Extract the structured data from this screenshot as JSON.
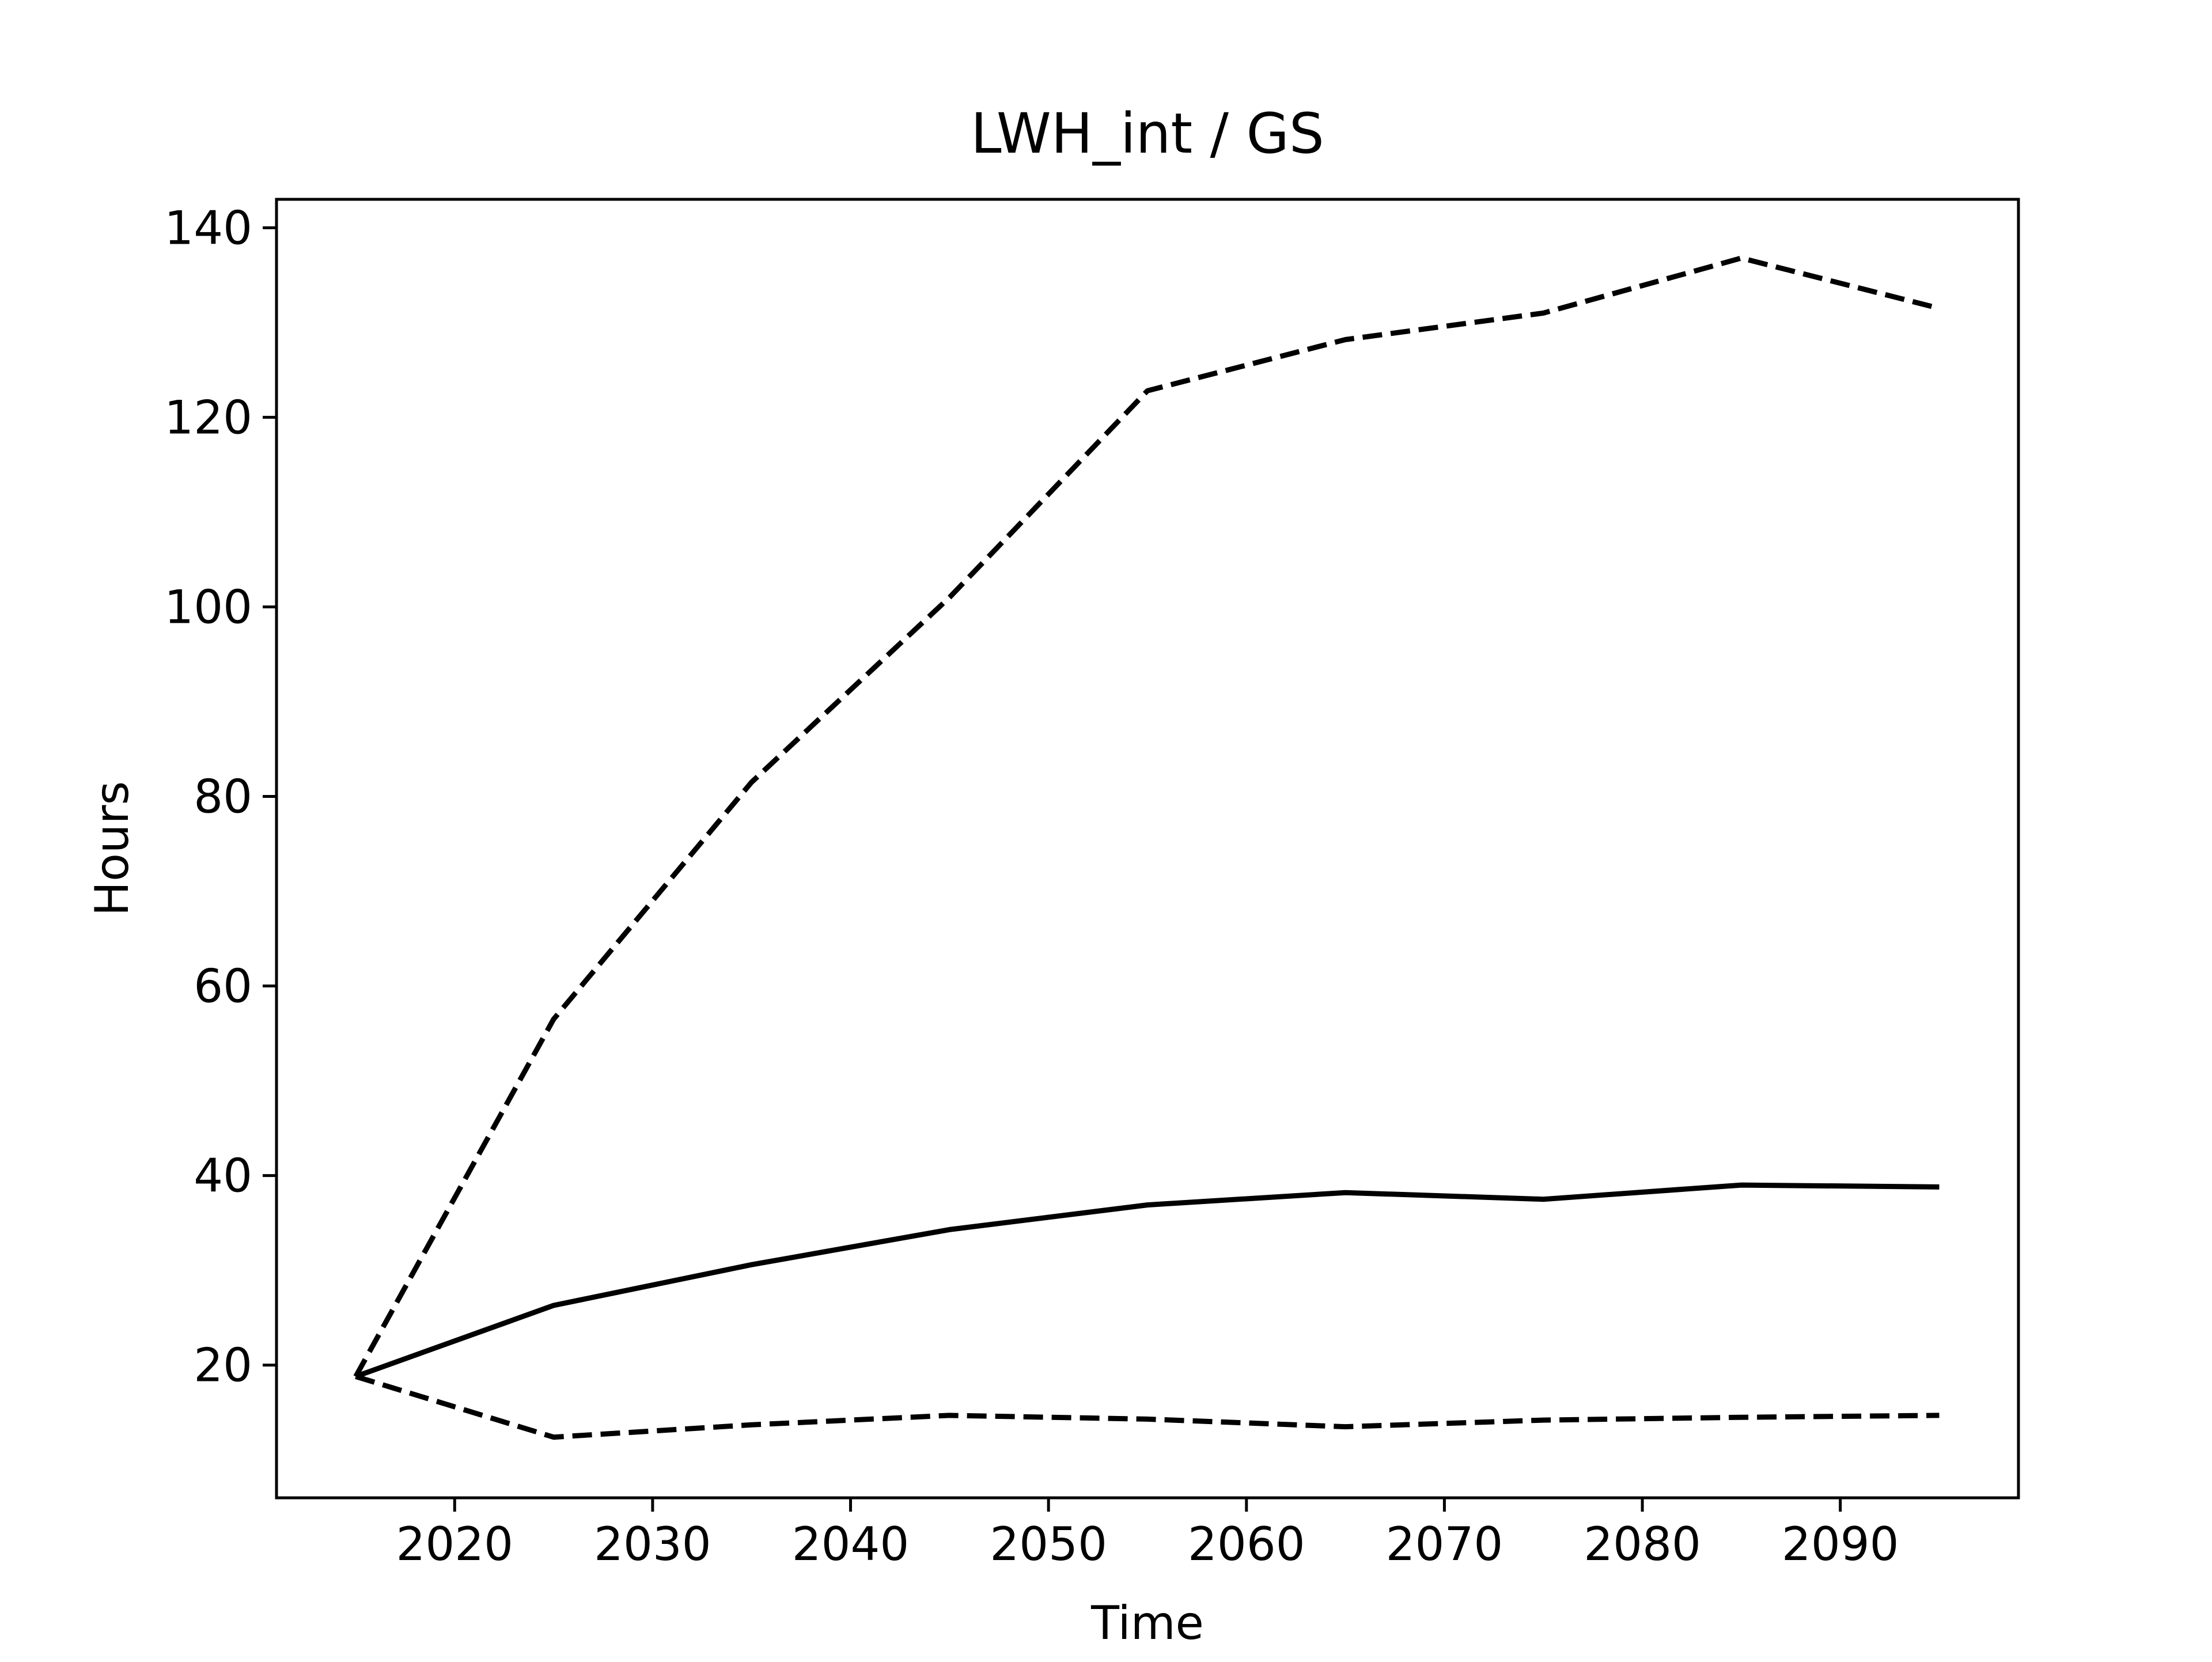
{
  "colors": {
    "line": "#000000",
    "background": "#ffffff"
  },
  "chart_data": {
    "type": "line",
    "title": "LWH_int / GS",
    "xlabel": "Time",
    "ylabel": "Hours",
    "xlim": [
      2011,
      2099
    ],
    "ylim": [
      6,
      143
    ],
    "x_ticks": [
      2020,
      2030,
      2040,
      2050,
      2060,
      2070,
      2080,
      2090
    ],
    "y_ticks": [
      20,
      40,
      60,
      80,
      100,
      120,
      140
    ],
    "grid": false,
    "legend": "none",
    "x": [
      2015,
      2025,
      2035,
      2045,
      2055,
      2065,
      2075,
      2085,
      2095
    ],
    "series": [
      {
        "style": "dashed",
        "values": [
          18.8,
          56.5,
          81.5,
          101.0,
          122.8,
          128.2,
          131.0,
          136.8,
          131.5
        ]
      },
      {
        "style": "solid",
        "values": [
          18.8,
          26.3,
          30.6,
          34.3,
          36.9,
          38.2,
          37.5,
          39.0,
          38.8
        ]
      },
      {
        "style": "dashed",
        "values": [
          18.8,
          12.4,
          13.7,
          14.7,
          14.3,
          13.5,
          14.2,
          14.5,
          14.7
        ]
      }
    ]
  }
}
